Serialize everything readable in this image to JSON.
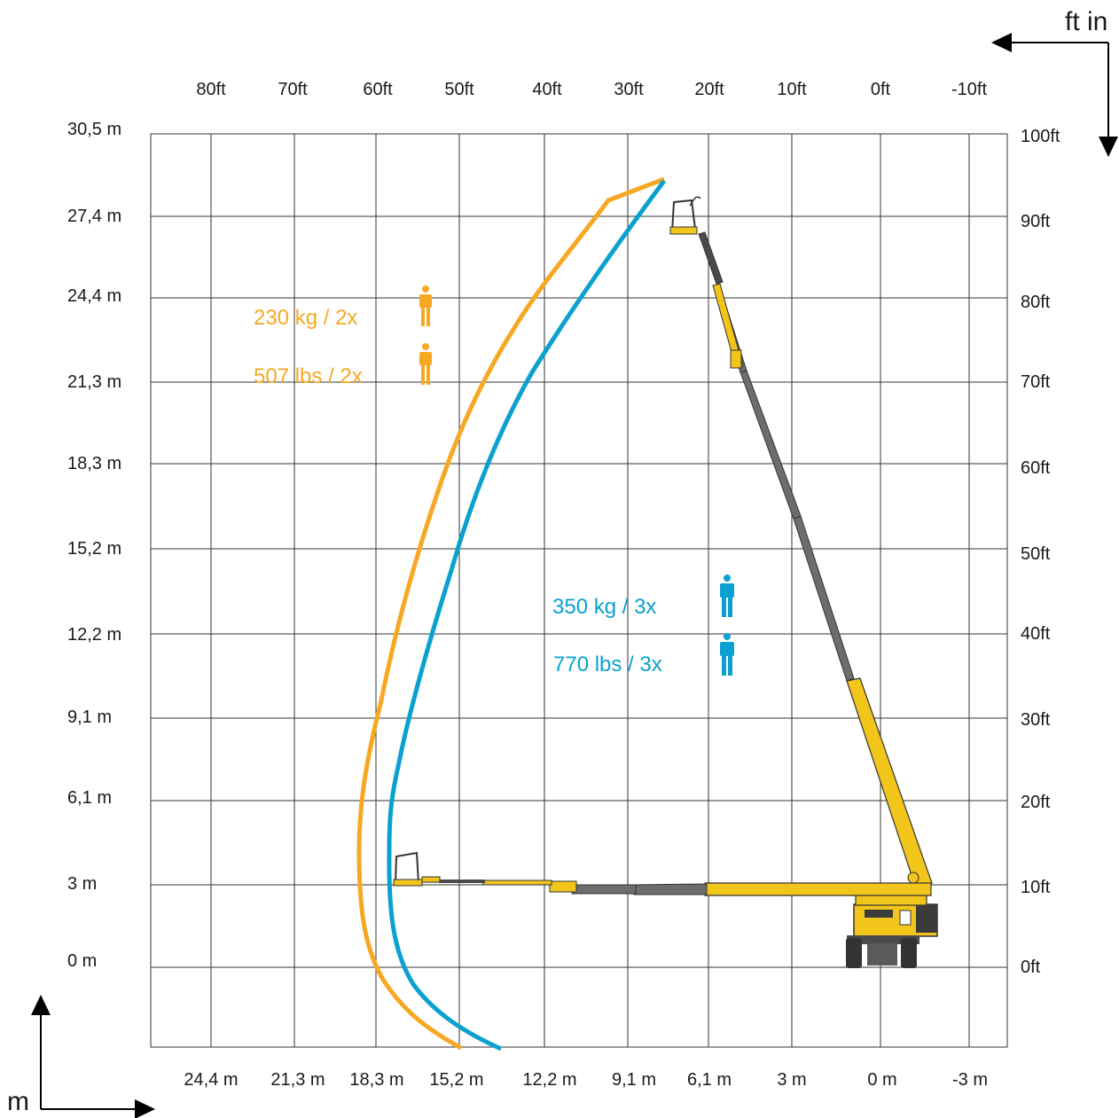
{
  "units": {
    "top_right": "ft in",
    "bottom_left": "m"
  },
  "top_ft_labels": [
    "80ft",
    "70ft",
    "60ft",
    "50ft",
    "40ft",
    "30ft",
    "20ft",
    "10ft",
    "0ft",
    "-10ft"
  ],
  "bottom_m_labels": [
    "24,4 m",
    "21,3 m",
    "18,3 m",
    "15,2 m",
    "12,2 m",
    "9,1 m",
    "6,1 m",
    "3 m",
    "0 m",
    "-3 m"
  ],
  "left_m_labels": [
    "30,5 m",
    "27,4 m",
    "24,4 m",
    "21,3 m",
    "18,3 m",
    "15,2 m",
    "12,2 m",
    "9,1 m",
    "6,1 m",
    "3 m",
    "0 m"
  ],
  "right_ft_labels": [
    "100ft",
    "90ft",
    "80ft",
    "70ft",
    "60ft",
    "50ft",
    "40ft",
    "30ft",
    "20ft",
    "10ft",
    "0ft"
  ],
  "capacity_2x": {
    "kg": "230 kg / 2x",
    "lbs": "507 lbs / 2x",
    "color": "#f7a823"
  },
  "capacity_3x": {
    "kg": "350 kg / 3x",
    "lbs": "770 lbs / 3x",
    "color": "#0aa1d0"
  },
  "colors": {
    "boom_yellow": "#f2c51b",
    "boom_grey": "#6b6e6c",
    "grid": "#333333"
  },
  "icons": [
    "person-icon",
    "boom-lift-icon",
    "arrow-left-icon",
    "arrow-down-icon",
    "arrow-up-icon",
    "arrow-right-icon"
  ]
}
